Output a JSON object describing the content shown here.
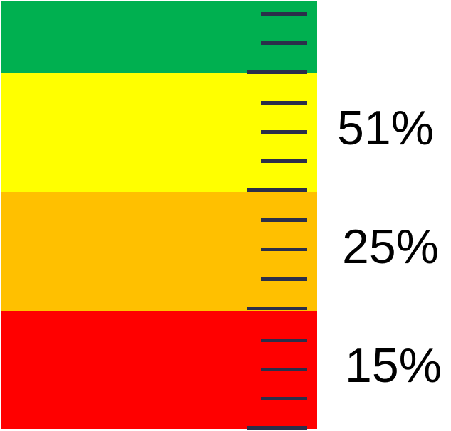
{
  "colors": {
    "green": "#00b050",
    "yellow": "#ffff00",
    "orange": "#ffc000",
    "red": "#ff0000",
    "tick": "#2b2f4a"
  },
  "bands": [
    {
      "color_key": "green",
      "label": ""
    },
    {
      "color_key": "yellow",
      "label": "51%"
    },
    {
      "color_key": "orange",
      "label": "25%"
    },
    {
      "color_key": "red",
      "label": "15%"
    }
  ]
}
